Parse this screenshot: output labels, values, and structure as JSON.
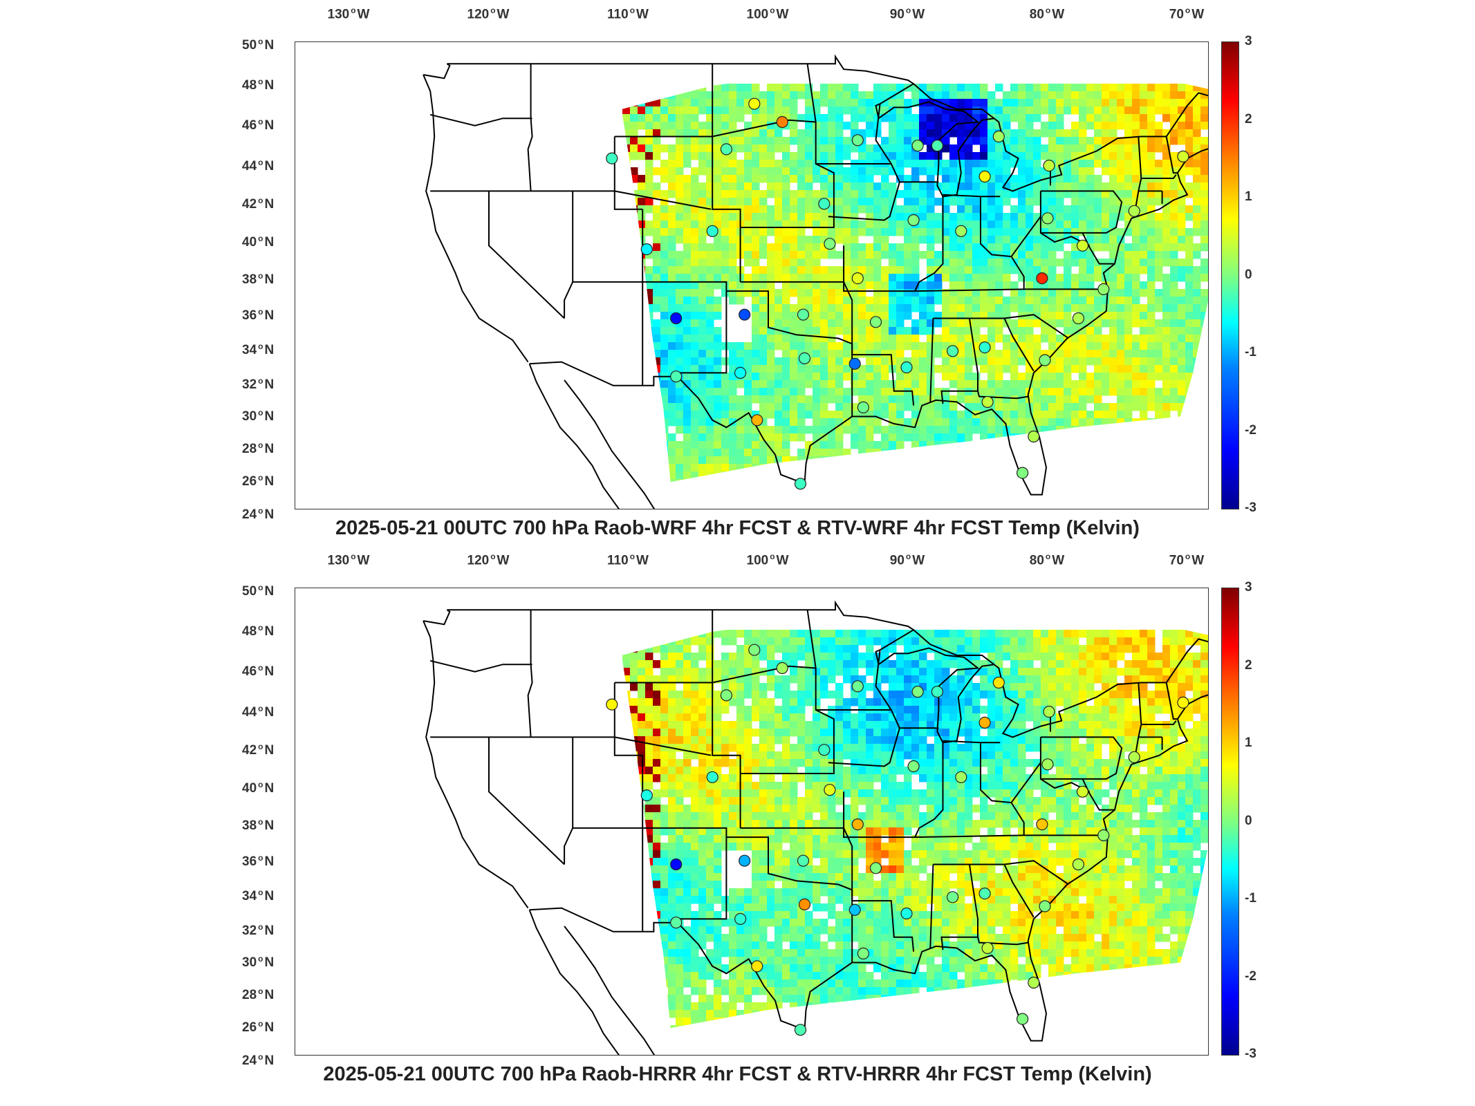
{
  "figure": {
    "lon_labels": [
      "130",
      "120",
      "110",
      "100",
      "90",
      "80",
      "70"
    ],
    "lon_suffix": "W",
    "lat_labels": [
      "50",
      "48",
      "46",
      "44",
      "42",
      "40",
      "38",
      "36",
      "34",
      "32",
      "30",
      "28",
      "26",
      "24"
    ],
    "lat_suffix": "N",
    "colorbar_ticks": [
      "3",
      "2",
      "1",
      "0",
      "-1",
      "-2",
      "-3"
    ],
    "colorbar_range": [
      -3,
      3
    ],
    "colormap": "jet",
    "colors": {
      "background": "#ffffff",
      "border": "#000000",
      "no_data": "#ffffff"
    }
  },
  "panels": [
    {
      "title": "2025-05-21 00UTC 700 hPa Raob-WRF 4hr FCST & RTV-WRF 4hr FCST Temp (Kelvin)",
      "model": "WRF"
    },
    {
      "title": "2025-05-21 00UTC 700 hPa Raob-HRRR 4hr FCST & RTV-HRRR 4hr FCST Temp (Kelvin)",
      "model": "HRRR"
    }
  ]
}
